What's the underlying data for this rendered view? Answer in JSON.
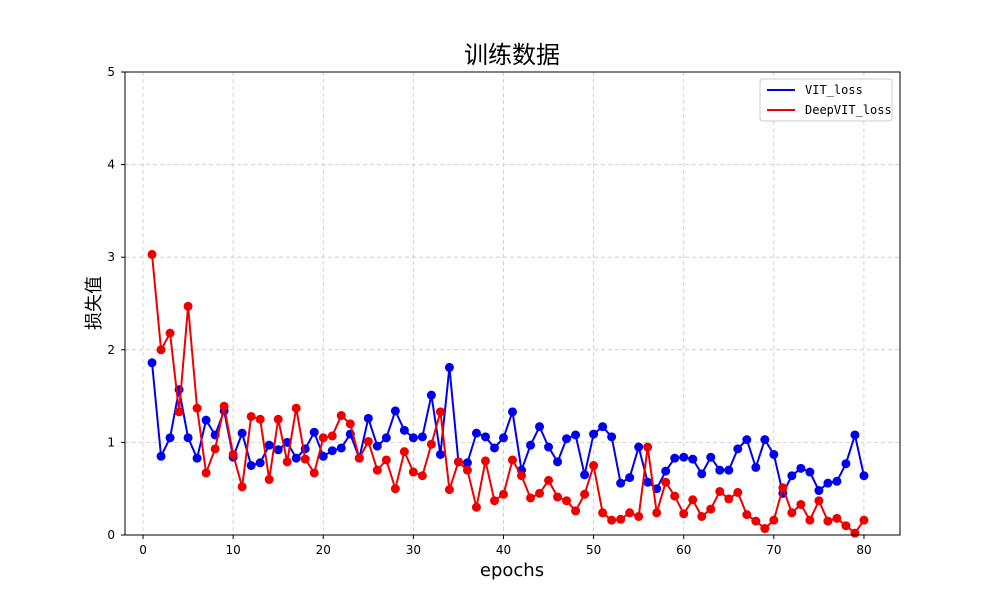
{
  "chart_data": {
    "type": "line",
    "title": "训练数据",
    "xlabel": "epochs",
    "ylabel": "损失值",
    "xlim": [
      -2,
      84
    ],
    "ylim": [
      0,
      5
    ],
    "xticks": [
      0,
      10,
      20,
      30,
      40,
      50,
      60,
      70,
      80
    ],
    "yticks": [
      0,
      1,
      2,
      3,
      4,
      5
    ],
    "grid": true,
    "legend_position": "top-right",
    "x": [
      1,
      2,
      3,
      4,
      5,
      6,
      7,
      8,
      9,
      10,
      11,
      12,
      13,
      14,
      15,
      16,
      17,
      18,
      19,
      20,
      21,
      22,
      23,
      24,
      25,
      26,
      27,
      28,
      29,
      30,
      31,
      32,
      33,
      34,
      35,
      36,
      37,
      38,
      39,
      40,
      41,
      42,
      43,
      44,
      45,
      46,
      47,
      48,
      49,
      50,
      51,
      52,
      53,
      54,
      55,
      56,
      57,
      58,
      59,
      60,
      61,
      62,
      63,
      64,
      65,
      66,
      67,
      68,
      69,
      70,
      71,
      72,
      73,
      74,
      75,
      76,
      77,
      78,
      79,
      80
    ],
    "series": [
      {
        "name": "VIT_loss",
        "color": "#0000ee",
        "values": [
          1.86,
          0.85,
          1.05,
          1.57,
          1.05,
          0.83,
          1.24,
          1.08,
          1.34,
          0.84,
          1.1,
          0.75,
          0.78,
          0.97,
          0.92,
          1.0,
          0.83,
          0.93,
          1.11,
          0.85,
          0.91,
          0.94,
          1.09,
          0.83,
          1.26,
          0.96,
          1.05,
          1.34,
          1.13,
          1.05,
          1.06,
          1.51,
          0.87,
          1.81,
          0.79,
          0.78,
          1.1,
          1.06,
          0.94,
          1.05,
          1.33,
          0.7,
          0.97,
          1.17,
          0.95,
          0.79,
          1.04,
          1.08,
          0.65,
          1.09,
          1.17,
          1.06,
          0.56,
          0.62,
          0.95,
          0.57,
          0.5,
          0.69,
          0.83,
          0.84,
          0.82,
          0.66,
          0.84,
          0.7,
          0.7,
          0.93,
          1.03,
          0.73,
          1.03,
          0.87,
          0.45,
          0.64,
          0.72,
          0.68,
          0.48,
          0.56,
          0.58,
          0.77,
          1.08,
          0.64
        ]
      },
      {
        "name": "DeepVIT_loss",
        "color": "#ee0000",
        "values": [
          3.03,
          2.0,
          2.18,
          1.33,
          2.47,
          1.37,
          0.67,
          0.93,
          1.39,
          0.87,
          0.52,
          1.28,
          1.25,
          0.6,
          1.25,
          0.79,
          1.37,
          0.82,
          0.67,
          1.05,
          1.07,
          1.29,
          1.2,
          0.83,
          1.01,
          0.7,
          0.81,
          0.5,
          0.9,
          0.68,
          0.64,
          0.98,
          1.33,
          0.49,
          0.79,
          0.7,
          0.3,
          0.8,
          0.37,
          0.44,
          0.81,
          0.64,
          0.4,
          0.45,
          0.59,
          0.41,
          0.37,
          0.26,
          0.44,
          0.75,
          0.24,
          0.16,
          0.17,
          0.24,
          0.2,
          0.95,
          0.24,
          0.57,
          0.42,
          0.23,
          0.38,
          0.2,
          0.28,
          0.47,
          0.39,
          0.46,
          0.22,
          0.15,
          0.07,
          0.16,
          0.51,
          0.24,
          0.33,
          0.16,
          0.37,
          0.15,
          0.18,
          0.1,
          0.02,
          0.16
        ]
      }
    ]
  }
}
